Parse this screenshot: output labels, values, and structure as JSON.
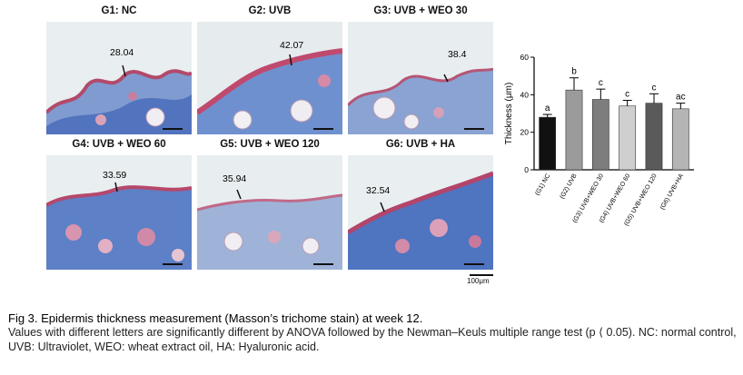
{
  "panels": [
    {
      "title": "G1: NC",
      "thickness": "28.04"
    },
    {
      "title": "G2: UVB",
      "thickness": "42.07"
    },
    {
      "title": "G3: UVB + WEO 30",
      "thickness": "38.4"
    },
    {
      "title": "G4: UVB + WEO 60",
      "thickness": "33.59"
    },
    {
      "title": "G5: UVB + WEO 120",
      "thickness": "35.94"
    },
    {
      "title": "G6: UVB + HA",
      "thickness": "32.54"
    }
  ],
  "scale_label": "100μm",
  "chart_data": {
    "type": "bar",
    "ylabel": "Thickness (μm)",
    "ylim": [
      0,
      60
    ],
    "yticks": [
      "0",
      "20",
      "40",
      "60"
    ],
    "categories": [
      "(G1) NC",
      "(G2) UVB",
      "(G3) UVB+WEO 30",
      "(G4) UVB+WEO 60",
      "(G5) UVB+WEO 120",
      "(G6) UVB+HA"
    ],
    "values": [
      28,
      42.5,
      37.5,
      34,
      35.5,
      32.5
    ],
    "errors": [
      1.5,
      6.5,
      5.5,
      3,
      5,
      3
    ],
    "letters": [
      "a",
      "b",
      "c",
      "c",
      "c",
      "ac"
    ],
    "colors": [
      "#111111",
      "#9b9b9b",
      "#7d7d7d",
      "#cfcfcf",
      "#5a5a5a",
      "#b5b5b5"
    ]
  },
  "caption": {
    "title": "Fig 3. Epidermis thickness measurement (Masson’s trichome stain) at week 12.",
    "body": "Values with different letters are significantly different by ANOVA followed by the Newman–Keuls multiple range test (p ⟨ 0.05). NC: normal control, UVB: Ultraviolet, WEO: wheat extract oil, HA: Hyaluronic acid."
  }
}
